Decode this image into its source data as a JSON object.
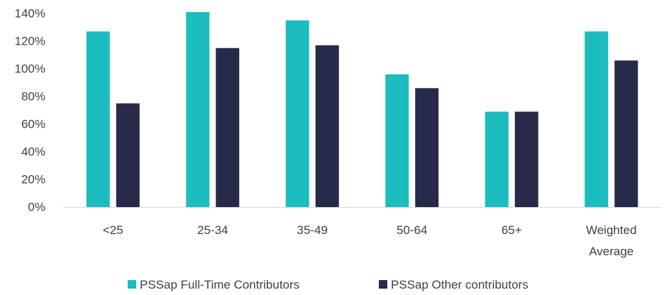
{
  "chart_data": {
    "type": "bar",
    "categories": [
      "<25",
      "25-34",
      "35-49",
      "50-64",
      "65+",
      "Weighted Average"
    ],
    "category_lines": [
      [
        "<25"
      ],
      [
        "25-34"
      ],
      [
        "35-49"
      ],
      [
        "50-64"
      ],
      [
        "65+"
      ],
      [
        "Weighted",
        "Average"
      ]
    ],
    "series": [
      {
        "name": "PSSap Full-Time Contributors",
        "color": "#1bbdbf",
        "values": [
          127,
          141,
          135,
          96,
          69,
          127
        ]
      },
      {
        "name": "PSSap Other contributors",
        "color": "#272a48",
        "values": [
          75,
          115,
          117,
          86,
          69,
          106
        ]
      }
    ],
    "y_ticks": [
      "0%",
      "20%",
      "40%",
      "60%",
      "80%",
      "100%",
      "120%",
      "140%"
    ],
    "ylim": [
      0,
      140
    ],
    "y_unit": "%",
    "grid": false,
    "legend_position": "bottom-center",
    "axis_color": "#d9d9d9"
  }
}
